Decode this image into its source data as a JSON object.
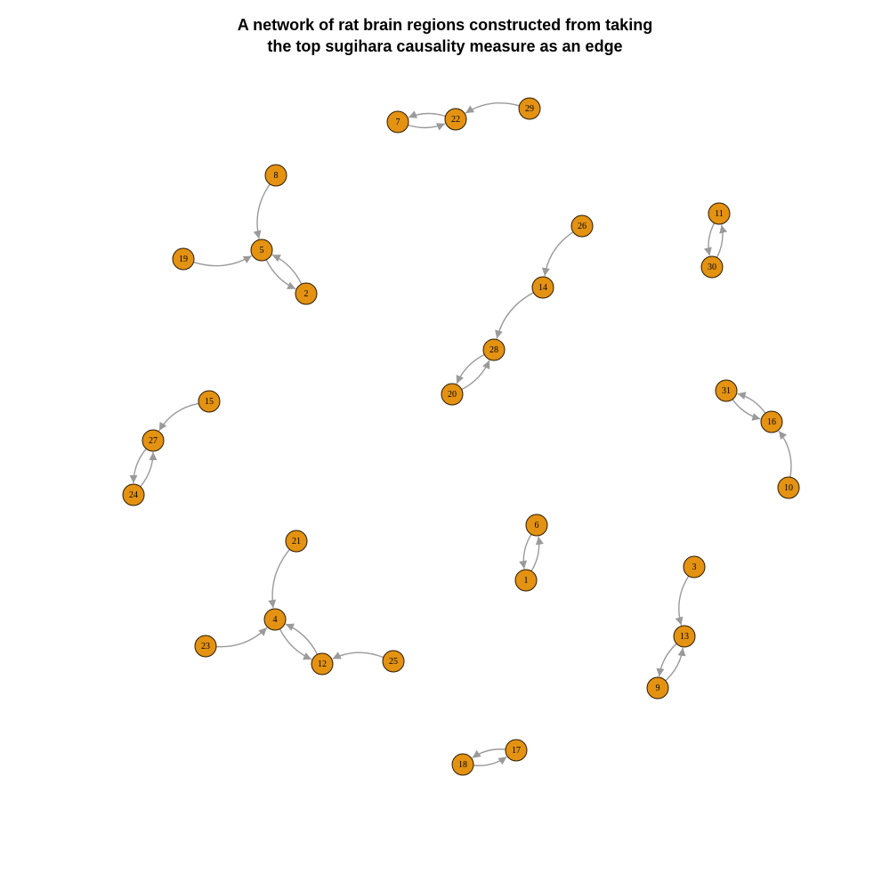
{
  "title": {
    "line1": "A network of rat brain regions constructed from taking",
    "line2": "the top sugihara causality measure as an edge"
  },
  "colors": {
    "node_fill": "#E39212",
    "node_stroke": "#2b1a00",
    "edge": "#9a9a9a",
    "background": "#ffffff"
  },
  "nodes": [
    "1",
    "2",
    "3",
    "4",
    "5",
    "6",
    "7",
    "8",
    "9",
    "10",
    "11",
    "12",
    "13",
    "14",
    "15",
    "16",
    "17",
    "18",
    "19",
    "20",
    "21",
    "22",
    "23",
    "24",
    "25",
    "26",
    "27",
    "28",
    "29",
    "30",
    "31"
  ],
  "edges": [
    {
      "from": "22",
      "to": "7"
    },
    {
      "from": "7",
      "to": "22"
    },
    {
      "from": "29",
      "to": "22"
    },
    {
      "from": "8",
      "to": "5"
    },
    {
      "from": "19",
      "to": "5"
    },
    {
      "from": "5",
      "to": "2"
    },
    {
      "from": "2",
      "to": "5"
    },
    {
      "from": "11",
      "to": "30"
    },
    {
      "from": "30",
      "to": "11"
    },
    {
      "from": "26",
      "to": "14"
    },
    {
      "from": "14",
      "to": "28"
    },
    {
      "from": "28",
      "to": "20"
    },
    {
      "from": "20",
      "to": "28"
    },
    {
      "from": "15",
      "to": "27"
    },
    {
      "from": "27",
      "to": "24"
    },
    {
      "from": "24",
      "to": "27"
    },
    {
      "from": "31",
      "to": "16"
    },
    {
      "from": "16",
      "to": "31"
    },
    {
      "from": "10",
      "to": "16"
    },
    {
      "from": "1",
      "to": "6"
    },
    {
      "from": "6",
      "to": "1"
    },
    {
      "from": "21",
      "to": "4"
    },
    {
      "from": "23",
      "to": "4"
    },
    {
      "from": "4",
      "to": "12"
    },
    {
      "from": "12",
      "to": "4"
    },
    {
      "from": "25",
      "to": "12"
    },
    {
      "from": "3",
      "to": "13"
    },
    {
      "from": "13",
      "to": "9"
    },
    {
      "from": "9",
      "to": "13"
    },
    {
      "from": "18",
      "to": "17"
    },
    {
      "from": "17",
      "to": "18"
    }
  ]
}
